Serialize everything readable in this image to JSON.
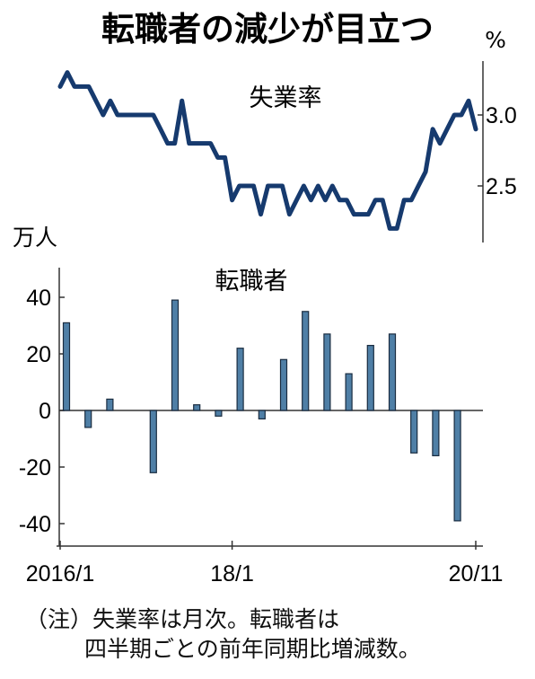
{
  "title": "転職者の減少が目立つ",
  "note": {
    "line1": "（注）失業率は月次。転職者は",
    "line2": "四半期ごとの前年同期比増減数。"
  },
  "colors": {
    "rate_line": "#163a6e",
    "bar_fill": "#4f7fa6",
    "bar_stroke": "#1a2c40",
    "axis": "#333333"
  },
  "chart_data": [
    {
      "type": "line",
      "series_label": "失業率",
      "unit": "%",
      "y_ticks": [
        3.0,
        2.5
      ],
      "y_tick_labels": [
        "3.0",
        "2.5"
      ],
      "ylim": [
        2.2,
        3.4
      ],
      "x_start": "2016-01",
      "x_end": "2020-11",
      "x": [
        "2016-01",
        "2016-02",
        "2016-03",
        "2016-04",
        "2016-05",
        "2016-06",
        "2016-07",
        "2016-08",
        "2016-09",
        "2016-10",
        "2016-11",
        "2016-12",
        "2017-01",
        "2017-02",
        "2017-03",
        "2017-04",
        "2017-05",
        "2017-06",
        "2017-07",
        "2017-08",
        "2017-09",
        "2017-10",
        "2017-11",
        "2017-12",
        "2018-01",
        "2018-02",
        "2018-03",
        "2018-04",
        "2018-05",
        "2018-06",
        "2018-07",
        "2018-08",
        "2018-09",
        "2018-10",
        "2018-11",
        "2018-12",
        "2019-01",
        "2019-02",
        "2019-03",
        "2019-04",
        "2019-05",
        "2019-06",
        "2019-07",
        "2019-08",
        "2019-09",
        "2019-10",
        "2019-11",
        "2019-12",
        "2020-01",
        "2020-02",
        "2020-03",
        "2020-04",
        "2020-05",
        "2020-06",
        "2020-07",
        "2020-08",
        "2020-09",
        "2020-10",
        "2020-11"
      ],
      "values": [
        3.2,
        3.3,
        3.2,
        3.2,
        3.2,
        3.1,
        3.0,
        3.1,
        3.0,
        3.0,
        3.0,
        3.0,
        3.0,
        3.0,
        2.9,
        2.8,
        2.8,
        3.1,
        2.8,
        2.8,
        2.8,
        2.8,
        2.7,
        2.7,
        2.4,
        2.5,
        2.5,
        2.5,
        2.3,
        2.5,
        2.5,
        2.5,
        2.3,
        2.4,
        2.5,
        2.4,
        2.5,
        2.4,
        2.5,
        2.4,
        2.4,
        2.3,
        2.3,
        2.3,
        2.4,
        2.4,
        2.2,
        2.2,
        2.4,
        2.4,
        2.5,
        2.6,
        2.9,
        2.8,
        2.9,
        3.0,
        3.0,
        3.1,
        2.9
      ]
    },
    {
      "type": "bar",
      "series_label": "転職者",
      "unit": "万人",
      "ylim": [
        -50,
        50
      ],
      "y_ticks": [
        40,
        20,
        0,
        -20,
        -40
      ],
      "y_tick_labels": [
        "40",
        "20",
        "0",
        "-20",
        "-40"
      ],
      "x_tick_labels": [
        "2016/1",
        "18/1",
        "20/11"
      ],
      "x_tick_dates": [
        "2016-01",
        "2018-01",
        "2020-11"
      ],
      "x": [
        "2016 Q1",
        "2016 Q2",
        "2016 Q3",
        "2016 Q4",
        "2017 Q1",
        "2017 Q2",
        "2017 Q3",
        "2017 Q4",
        "2018 Q1",
        "2018 Q2",
        "2018 Q3",
        "2018 Q4",
        "2019 Q1",
        "2019 Q2",
        "2019 Q3",
        "2019 Q4",
        "2020 Q1",
        "2020 Q2",
        "2020 Q3"
      ],
      "values": [
        31,
        -6,
        4,
        0,
        -22,
        39,
        2,
        -2,
        22,
        -3,
        18,
        35,
        27,
        13,
        23,
        27,
        -15,
        -16,
        -39
      ]
    }
  ]
}
